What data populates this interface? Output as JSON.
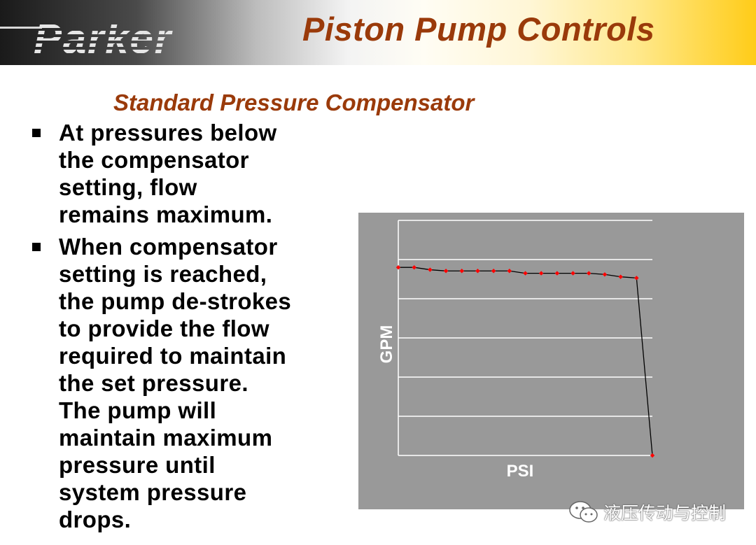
{
  "header": {
    "logo_text": "Parker",
    "title": "Piston Pump Controls"
  },
  "subtitle": "Standard Pressure Compensator",
  "bullets": [
    "At pressures below\nthe compensator\nsetting, flow\nremains  maximum.",
    "When compensator\nsetting is reached,\nthe pump de-strokes\nto provide the flow\nrequired to maintain\nthe set pressure.\nThe pump will\nmaintain maximum\npressure until\nsystem pressure\ndrops."
  ],
  "chart_data": {
    "type": "line",
    "xlabel": "PSI",
    "ylabel": "GPM",
    "ylim": [
      0,
      100
    ],
    "xlim": [
      0,
      16
    ],
    "grid": true,
    "x_tick_labels": false,
    "y_tick_labels": false,
    "series": [
      {
        "x": [
          0,
          1,
          2,
          3,
          4,
          5,
          6,
          7,
          8,
          9,
          10,
          11,
          12,
          13,
          14,
          15,
          16
        ],
        "y": [
          80,
          80,
          79,
          78.5,
          78.5,
          78.5,
          78.5,
          78.5,
          77.5,
          77.5,
          77.5,
          77.5,
          77.5,
          77,
          76,
          75.5,
          0
        ]
      }
    ],
    "colors": {
      "background": "#999999",
      "grid": "#ffffff",
      "line": "#000000",
      "marker": "#ff0000"
    }
  },
  "watermark": {
    "icon": "wechat-icon",
    "text": "液压传动与控制"
  }
}
